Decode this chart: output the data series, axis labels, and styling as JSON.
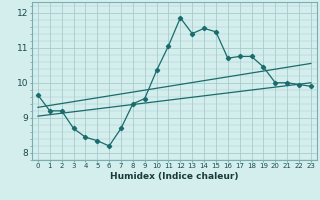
{
  "xlabel": "Humidex (Indice chaleur)",
  "bg_color": "#d4eeee",
  "line_color": "#1a6b6b",
  "grid_color": "#a8cccc",
  "xlim": [
    -0.5,
    23.5
  ],
  "ylim": [
    7.8,
    12.3
  ],
  "ytick_values": [
    8,
    9,
    10,
    11,
    12
  ],
  "series1_x": [
    0,
    1,
    2,
    3,
    4,
    5,
    6,
    7,
    8,
    9,
    10,
    11,
    12,
    13,
    14,
    15,
    16,
    17,
    18,
    19,
    20,
    21,
    22,
    23
  ],
  "series1_y": [
    9.65,
    9.2,
    9.2,
    8.7,
    8.45,
    8.35,
    8.2,
    8.7,
    9.4,
    9.55,
    10.35,
    11.05,
    11.85,
    11.4,
    11.55,
    11.45,
    10.7,
    10.75,
    10.75,
    10.45,
    10.0,
    10.0,
    9.95,
    9.9
  ],
  "series2_x": [
    0,
    23
  ],
  "series2_y": [
    9.3,
    10.55
  ],
  "series3_x": [
    0,
    23
  ],
  "series3_y": [
    9.05,
    10.0
  ]
}
